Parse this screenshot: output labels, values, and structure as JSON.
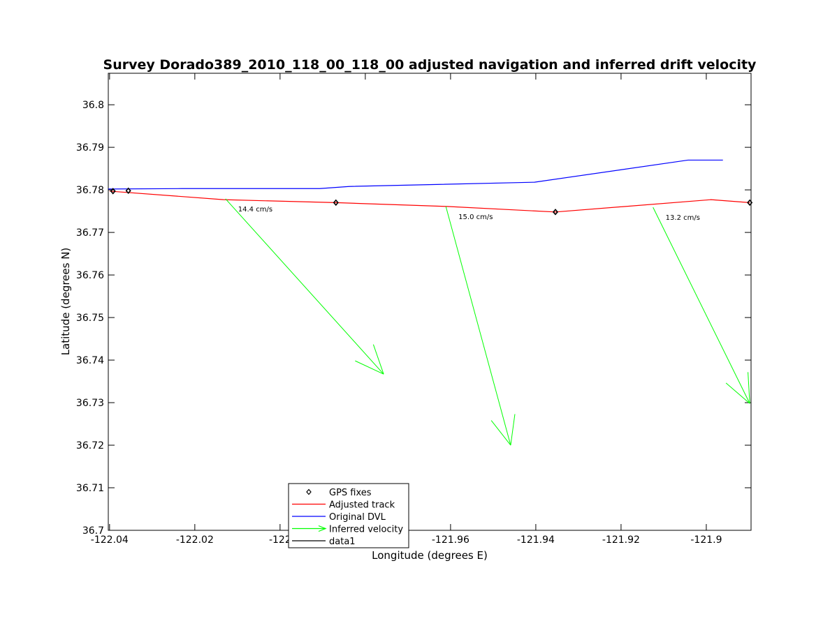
{
  "chart_data": {
    "type": "line",
    "title": "Survey Dorado389_2010_118_00_118_00 adjusted navigation and inferred drift velocity",
    "xlabel": "Longitude (degrees E)",
    "ylabel": "Latitude (degrees N)",
    "xlim": [
      -122.0403,
      -121.8895
    ],
    "ylim": [
      36.7,
      36.8074
    ],
    "xticks": [
      -122.04,
      -122.02,
      -122.0,
      -121.98,
      -121.96,
      -121.94,
      -121.92,
      -121.9
    ],
    "xtick_labels": [
      "-122.04",
      "-122.02",
      "-122",
      "-121.98",
      "-121.96",
      "-121.94",
      "-121.92",
      "-121.9"
    ],
    "yticks": [
      36.7,
      36.71,
      36.72,
      36.73,
      36.74,
      36.75,
      36.76,
      36.77,
      36.78,
      36.79,
      36.8
    ],
    "ytick_labels": [
      "36.7",
      "36.71",
      "36.72",
      "36.73",
      "36.74",
      "36.75",
      "36.76",
      "36.77",
      "36.78",
      "36.79",
      "36.8"
    ],
    "grid": false,
    "legend_placement": "bottom-center-left",
    "legend": [
      "GPS fixes",
      "Adjusted track",
      "Original DVL",
      "Inferred velocity",
      "data1"
    ],
    "series": [
      {
        "name": "Original DVL",
        "color": "#0000ff",
        "x": [
          -122.0403,
          -122.0231,
          -121.9907,
          -121.9838,
          -121.9403,
          -121.9043,
          -121.8961
        ],
        "y": [
          36.7802,
          36.7803,
          36.7803,
          36.7808,
          36.7818,
          36.787,
          36.787
        ]
      },
      {
        "name": "Adjusted track",
        "color": "#ff0000",
        "x": [
          -122.04,
          -122.0133,
          -121.987,
          -121.9608,
          -121.9354,
          -121.8989,
          -121.8898
        ],
        "y": [
          36.7797,
          36.7777,
          36.777,
          36.7761,
          36.7748,
          36.7777,
          36.777
        ]
      },
      {
        "name": "GPS fixes",
        "color": "#000000",
        "marker": "diamond",
        "x": [
          -122.0392,
          -122.0356,
          -121.9869,
          -121.9354,
          -121.8898
        ],
        "y": [
          36.7797,
          36.7798,
          36.777,
          36.7748,
          36.777
        ]
      }
    ],
    "arrows": [
      {
        "name": "Inferred velocity",
        "color": "#00ff00",
        "x0": -122.0128,
        "y0": 36.7779,
        "x1": -121.9757,
        "y1": 36.7367,
        "label": "14.4 cm/s"
      },
      {
        "name": "Inferred velocity",
        "color": "#00ff00",
        "x0": -121.9611,
        "y0": 36.7761,
        "x1": -121.9459,
        "y1": 36.72,
        "label": "15.0 cm/s"
      },
      {
        "name": "Inferred velocity",
        "color": "#00ff00",
        "x0": -121.9125,
        "y0": 36.7759,
        "x1": -121.8898,
        "y1": 36.7298,
        "label": "13.2 cm/s"
      }
    ]
  }
}
